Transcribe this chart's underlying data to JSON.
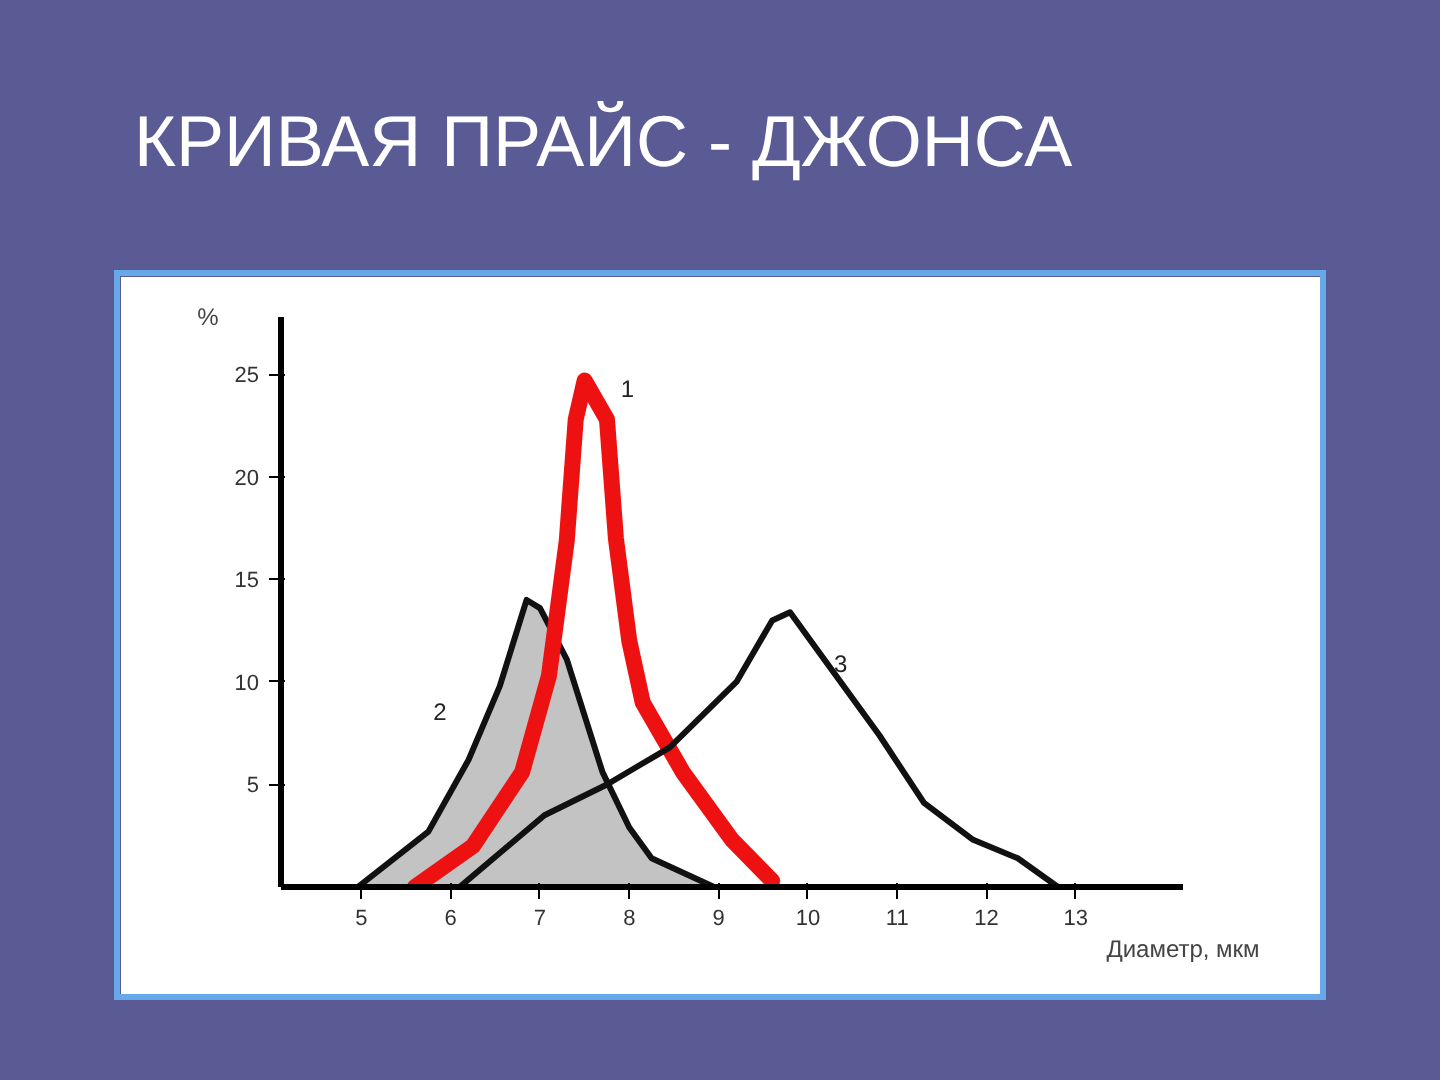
{
  "chart_data": {
    "type": "line",
    "title": "КРИВАЯ ПРАЙС - ДЖОНСА",
    "xlabel": "Диаметр, мкм",
    "ylabel": "%",
    "series": [
      {
        "color": "#ee1111",
        "x": [
          5.6,
          6.25,
          6.8,
          7.1,
          7.3,
          7.4,
          7.5,
          7.75,
          7.85,
          8.0,
          8.15,
          8.6,
          9.15,
          9.6
        ],
        "values": [
          0,
          2,
          5.6,
          10.3,
          16.9,
          22.8,
          24.7,
          22.8,
          17,
          12,
          9,
          5.6,
          2.3,
          0.3
        ]
      },
      {
        "type": "area",
        "color": "#111111",
        "x": [
          4.96,
          5.75,
          6.2,
          6.55,
          6.85,
          7.0,
          7.3,
          7.7,
          8.0,
          8.25,
          8.95
        ],
        "values": [
          0,
          2.7,
          6.2,
          9.8,
          14.0,
          13.6,
          11.1,
          5.6,
          2.9,
          1.4,
          0
        ]
      },
      {
        "color": "#111111",
        "x": [
          6.1,
          7.05,
          7.75,
          8.1,
          8.45,
          9.2,
          9.6,
          9.8,
          10.1,
          10.8,
          11.3,
          11.85,
          12.35,
          12.8
        ],
        "values": [
          0,
          3.5,
          5,
          5.9,
          6.8,
          10,
          13,
          13.4,
          11.6,
          7.4,
          4.1,
          2.3,
          1.4,
          0
        ]
      }
    ],
    "annotations": [
      "1",
      "2",
      "3"
    ],
    "xlim": [
      4.1,
      14.2
    ],
    "ylim": [
      0,
      27.8
    ],
    "xticks": [
      5,
      6,
      7,
      8,
      9,
      10,
      11,
      12,
      13
    ],
    "yticks": [
      5,
      10,
      15,
      20,
      25
    ],
    "grid": false
  }
}
